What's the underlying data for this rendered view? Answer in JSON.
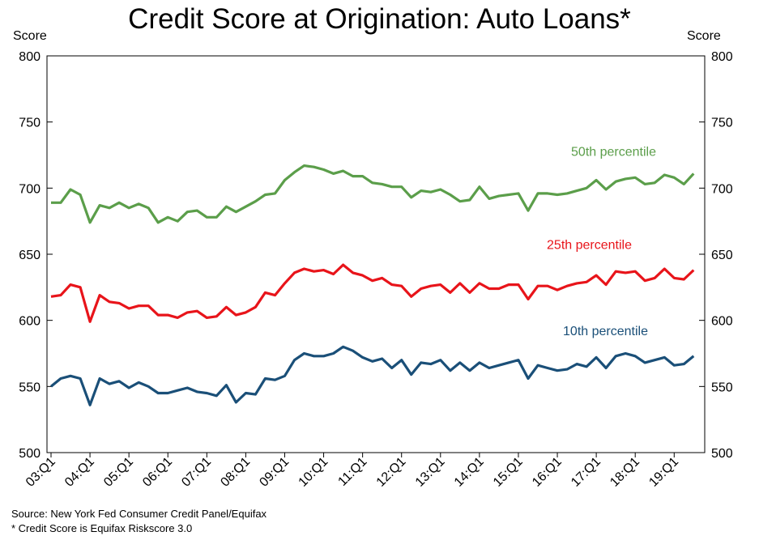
{
  "chart_data": {
    "type": "line",
    "title": "Credit Score at Origination: Auto Loans*",
    "ylabel_left": "Score",
    "ylabel_right": "Score",
    "ylim": [
      500,
      800
    ],
    "yticks": [
      500,
      550,
      600,
      650,
      700,
      750,
      800
    ],
    "grid": false,
    "quarters_per_year": 4,
    "xtick_labels": [
      "03:Q1",
      "04:Q1",
      "05:Q1",
      "06:Q1",
      "07:Q1",
      "08:Q1",
      "09:Q1",
      "10:Q1",
      "11:Q1",
      "12:Q1",
      "13:Q1",
      "14:Q1",
      "15:Q1",
      "16:Q1",
      "17:Q1",
      "18:Q1",
      "19:Q1"
    ],
    "series": [
      {
        "name": "50th percentile",
        "color": "#5b9e4a",
        "values": [
          689,
          689,
          699,
          695,
          674,
          687,
          685,
          689,
          685,
          688,
          685,
          674,
          678,
          675,
          682,
          683,
          678,
          678,
          686,
          682,
          686,
          690,
          695,
          696,
          706,
          712,
          717,
          716,
          714,
          711,
          713,
          709,
          709,
          704,
          703,
          701,
          701,
          693,
          698,
          697,
          699,
          695,
          690,
          691,
          701,
          692,
          694,
          695,
          696,
          683,
          696,
          696,
          695,
          696,
          698,
          700,
          706,
          699,
          705,
          707,
          708,
          703,
          704,
          710,
          708,
          703,
          711
        ]
      },
      {
        "name": "25th percentile",
        "color": "#e8141a",
        "values": [
          618,
          619,
          627,
          625,
          599,
          619,
          614,
          613,
          609,
          611,
          611,
          604,
          604,
          602,
          606,
          607,
          602,
          603,
          610,
          604,
          606,
          610,
          621,
          619,
          628,
          636,
          639,
          637,
          638,
          635,
          642,
          636,
          634,
          630,
          632,
          627,
          626,
          618,
          624,
          626,
          627,
          621,
          628,
          621,
          628,
          624,
          624,
          627,
          627,
          616,
          626,
          626,
          623,
          626,
          628,
          629,
          634,
          627,
          637,
          636,
          637,
          630,
          632,
          639,
          632,
          631,
          638
        ]
      },
      {
        "name": "10th percentile",
        "color": "#1a4f78",
        "values": [
          550,
          556,
          558,
          556,
          536,
          556,
          552,
          554,
          549,
          553,
          550,
          545,
          545,
          547,
          549,
          546,
          545,
          543,
          551,
          538,
          545,
          544,
          556,
          555,
          558,
          570,
          575,
          573,
          573,
          575,
          580,
          577,
          572,
          569,
          571,
          564,
          570,
          559,
          568,
          567,
          570,
          562,
          568,
          562,
          568,
          564,
          566,
          568,
          570,
          556,
          566,
          564,
          562,
          563,
          567,
          565,
          572,
          564,
          573,
          575,
          573,
          568,
          570,
          572,
          566,
          567,
          573
        ]
      }
    ]
  },
  "footnotes": {
    "source": "Source: New York Fed Consumer Credit Panel/Equifax",
    "score": "* Credit Score is Equifax Riskscore 3.0"
  }
}
